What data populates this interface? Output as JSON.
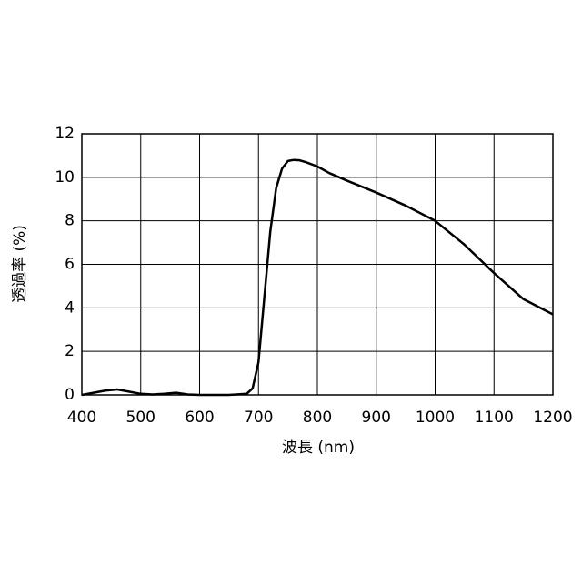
{
  "chart_data": {
    "type": "line",
    "x_label": "波長 (nm)",
    "y_label": "透過率 (%)",
    "x": [
      400,
      420,
      440,
      460,
      480,
      500,
      520,
      540,
      560,
      580,
      600,
      650,
      680,
      690,
      700,
      710,
      720,
      730,
      740,
      750,
      760,
      770,
      780,
      800,
      820,
      850,
      900,
      950,
      1000,
      1050,
      1100,
      1150,
      1200
    ],
    "series": [
      {
        "color": "#000000",
        "values": [
          0.0,
          0.1,
          0.2,
          0.25,
          0.15,
          0.05,
          0.02,
          0.05,
          0.1,
          0.02,
          0.0,
          0.0,
          0.05,
          0.3,
          1.5,
          4.5,
          7.5,
          9.5,
          10.4,
          10.75,
          10.8,
          10.78,
          10.7,
          10.5,
          10.2,
          9.85,
          9.3,
          8.7,
          8.0,
          6.9,
          5.6,
          4.4,
          3.7
        ]
      }
    ],
    "xlim": [
      400,
      1200
    ],
    "xticks": [
      400,
      500,
      600,
      700,
      800,
      900,
      1000,
      1100,
      1200
    ],
    "ylim": [
      0,
      12
    ],
    "yticks": [
      0,
      2,
      4,
      6,
      8,
      10,
      12
    ],
    "grid": true
  }
}
